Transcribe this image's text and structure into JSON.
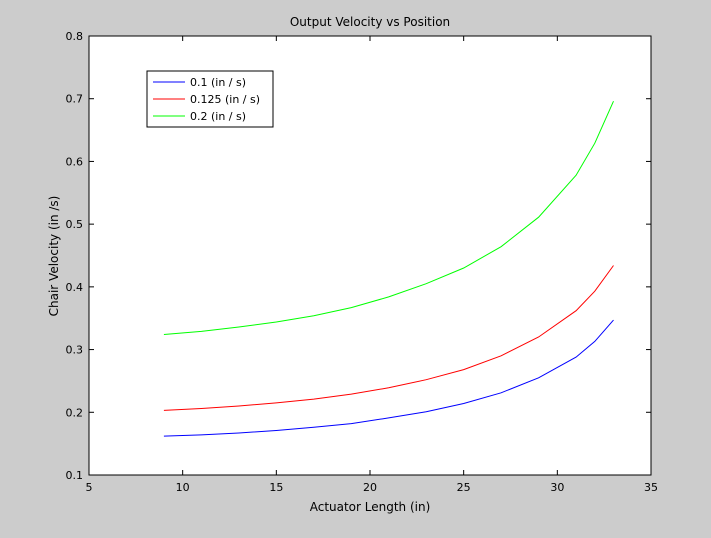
{
  "figure": {
    "background": "#cccccc",
    "plot_background": "#ffffff"
  },
  "chart_data": {
    "type": "line",
    "title": "Output Velocity vs Position",
    "xlabel": "Actuator Length (in)",
    "ylabel": "Chair Velocity (in /s)",
    "xlim": [
      5,
      35
    ],
    "ylim": [
      0.1,
      0.8
    ],
    "xticks": [
      5,
      10,
      15,
      20,
      25,
      30,
      35
    ],
    "yticks": [
      0.1,
      0.2,
      0.3,
      0.4,
      0.5,
      0.6,
      0.7,
      0.8
    ],
    "xtick_labels": [
      "5",
      "10",
      "15",
      "20",
      "25",
      "30",
      "35"
    ],
    "ytick_labels": [
      "0.1",
      "0.2",
      "0.3",
      "0.4",
      "0.5",
      "0.6",
      "0.7",
      "0.8"
    ],
    "grid": false,
    "legend_position": "top-left",
    "x": [
      9,
      11,
      13,
      15,
      17,
      19,
      21,
      23,
      25,
      27,
      29,
      31,
      32,
      33
    ],
    "series": [
      {
        "name": "0.1 (in / s)",
        "color": "#0000ff",
        "values": [
          0.162,
          0.164,
          0.167,
          0.171,
          0.176,
          0.182,
          0.191,
          0.201,
          0.214,
          0.231,
          0.255,
          0.288,
          0.313,
          0.347
        ]
      },
      {
        "name": "0.125 (in / s)",
        "color": "#ff0000",
        "values": [
          0.203,
          0.206,
          0.21,
          0.215,
          0.221,
          0.229,
          0.239,
          0.252,
          0.268,
          0.29,
          0.32,
          0.362,
          0.393,
          0.434
        ]
      },
      {
        "name": "0.2 (in / s)",
        "color": "#00ff00",
        "values": [
          0.324,
          0.329,
          0.336,
          0.344,
          0.354,
          0.367,
          0.384,
          0.405,
          0.43,
          0.464,
          0.511,
          0.578,
          0.629,
          0.696
        ]
      }
    ]
  }
}
